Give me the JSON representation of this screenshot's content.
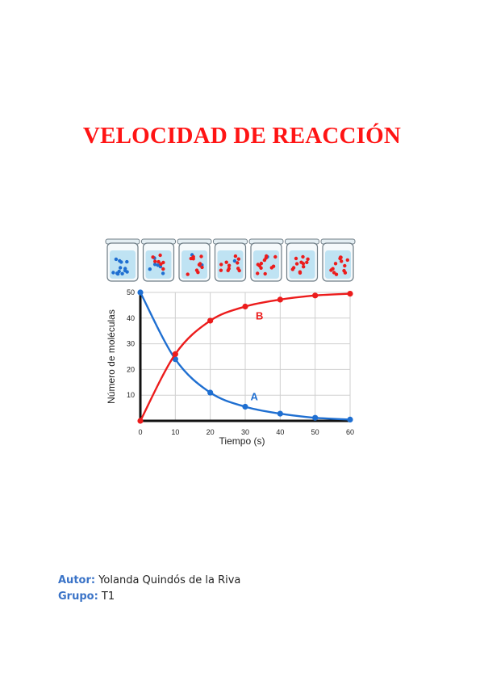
{
  "document": {
    "title": "VELOCIDAD DE REACCIÓN",
    "author_label": "Autor:",
    "author_value": "Yolanda Quindós de la Riva",
    "group_label": "Grupo:",
    "group_value": "T1"
  },
  "colors": {
    "title": "#ff1414",
    "meta_label": "#3a73c7",
    "series_A": "#1f6fd1",
    "series_B": "#ec1c1c"
  },
  "beakers": [
    {
      "time": 0,
      "A": 50,
      "B": 0
    },
    {
      "time": 10,
      "A": 24,
      "B": 26
    },
    {
      "time": 20,
      "A": 11,
      "B": 39
    },
    {
      "time": 30,
      "A": 5,
      "B": 45
    },
    {
      "time": 40,
      "A": 3,
      "B": 47
    },
    {
      "time": 50,
      "A": 1,
      "B": 49
    },
    {
      "time": 60,
      "A": 0,
      "B": 50
    }
  ],
  "chart_data": {
    "type": "line",
    "xlabel": "Tiempo (s)",
    "ylabel": "Número de moléculas",
    "xlim": [
      0,
      60
    ],
    "ylim": [
      0,
      50
    ],
    "xticks": [
      "0",
      "10",
      "20",
      "30",
      "40",
      "50",
      "60"
    ],
    "yticks": [
      "10",
      "20",
      "30",
      "40",
      "50"
    ],
    "grid": true,
    "series": [
      {
        "name": "A",
        "x": [
          0,
          10,
          20,
          30,
          40,
          50,
          60
        ],
        "y": [
          50,
          24,
          11,
          5.5,
          2.8,
          1.2,
          0.5
        ]
      },
      {
        "name": "B",
        "x": [
          0,
          10,
          20,
          30,
          40,
          50,
          60
        ],
        "y": [
          0,
          26,
          39,
          44.5,
          47.2,
          48.8,
          49.5
        ]
      }
    ]
  }
}
